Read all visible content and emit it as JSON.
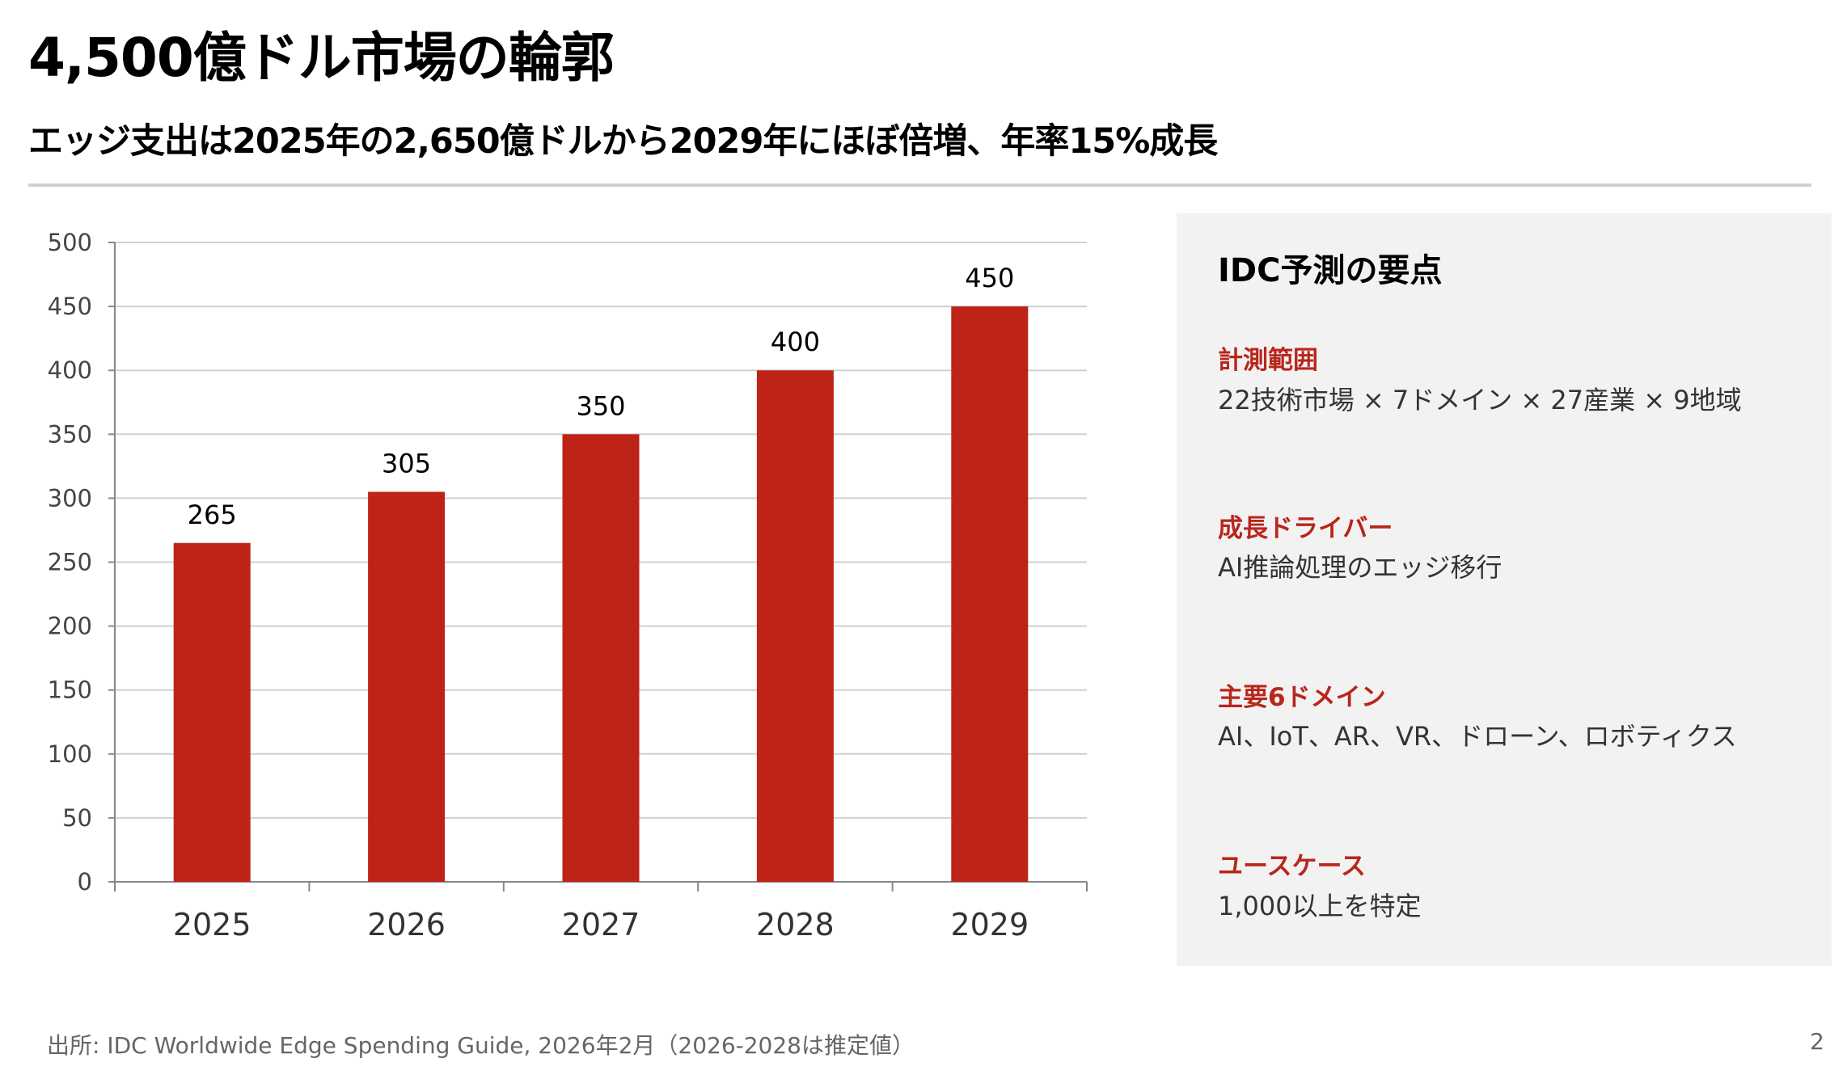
{
  "header": {
    "title": "4,500億ドル市場の輪郭",
    "subtitle": "エッジ支出は2025年の2,650億ドルから2029年にほぼ倍増、年率15%成長"
  },
  "chart_data": {
    "type": "bar",
    "categories": [
      "2025",
      "2026",
      "2027",
      "2028",
      "2029"
    ],
    "values": [
      265,
      305,
      350,
      400,
      450
    ],
    "data_labels": [
      "265",
      "305",
      "350",
      "400",
      "450"
    ],
    "ylim": [
      0,
      500
    ],
    "yticks": [
      0,
      50,
      100,
      150,
      200,
      250,
      300,
      350,
      400,
      450,
      500
    ],
    "grid": true,
    "bar_color": "#be2318",
    "title": "",
    "xlabel": "",
    "ylabel": ""
  },
  "panel": {
    "title": "IDC予測の要点",
    "sections": [
      {
        "head": "計測範囲",
        "body": "22技術市場 × 7ドメイン × 27産業 × 9地域"
      },
      {
        "head": "成長ドライバー",
        "body": "AI推論処理のエッジ移行"
      },
      {
        "head": "主要6ドメイン",
        "body": "AI、IoT、AR、VR、ドローン、ロボティクス"
      },
      {
        "head": "ユースケース",
        "body": "1,000以上を特定"
      }
    ],
    "accent_color": "#b8261c"
  },
  "footer": {
    "source": "出所: IDC Worldwide Edge Spending Guide, 2026年2月（2026-2028は推定値）",
    "page_number": "2"
  }
}
